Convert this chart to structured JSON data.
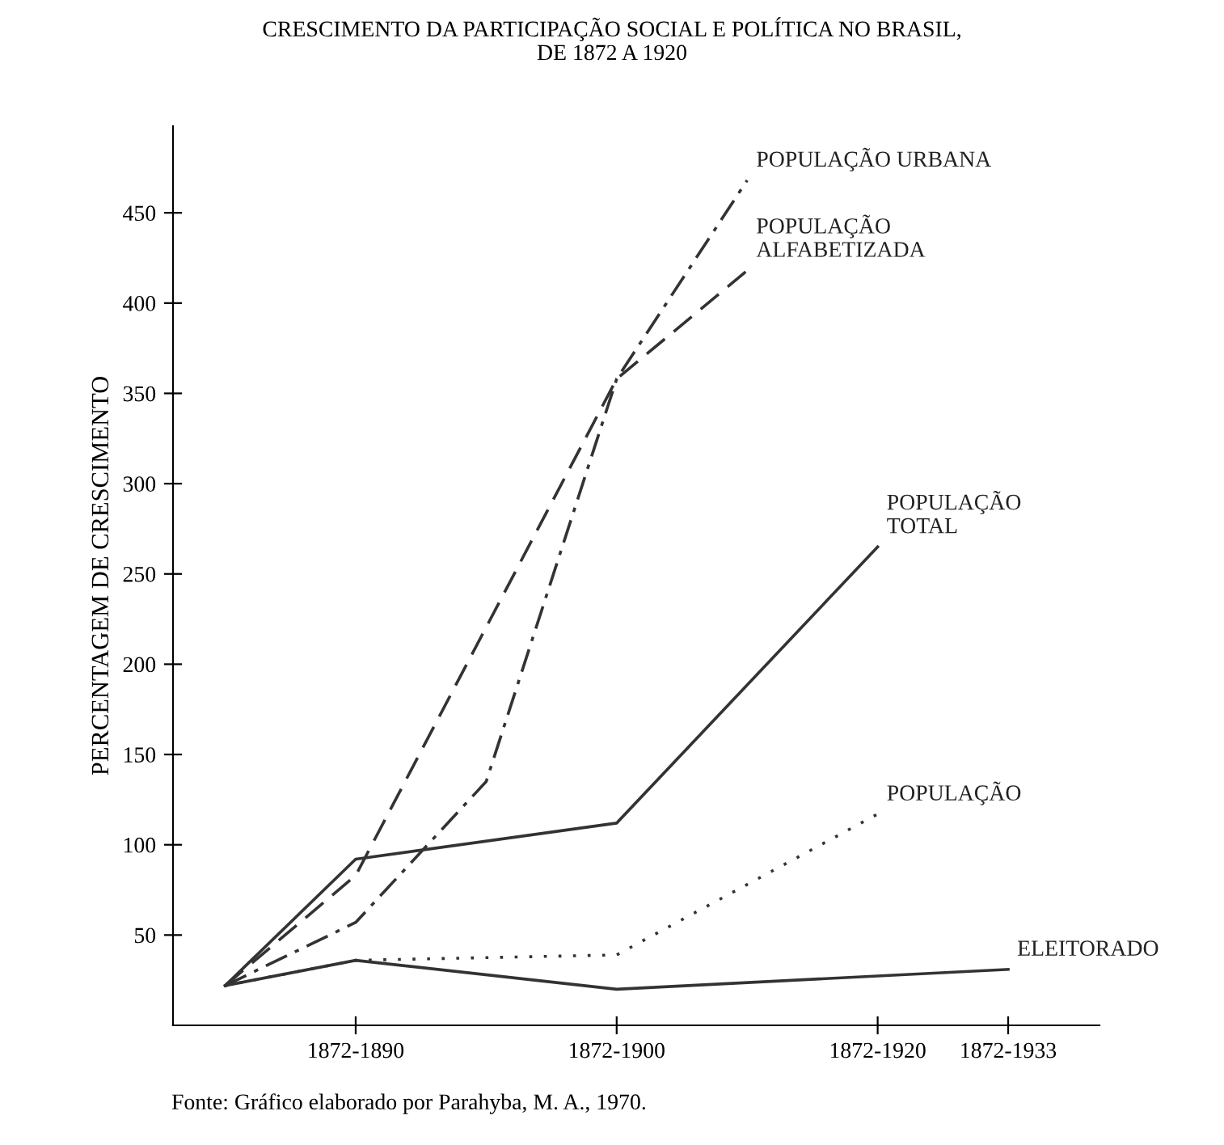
{
  "chart_data": {
    "type": "line",
    "title": "CRESCIMENTO DA PARTICIPAÇÃO SOCIAL E POLÍTICA NO BRASIL,\nDE 1872 A 1920",
    "ylabel": "PERCENTAGEM DE CRESCIMENTO",
    "categories": [
      null,
      "1872-1890",
      null,
      "1872-1900",
      null,
      "1872-1920",
      "1872-1933"
    ],
    "ylim": [
      0,
      498
    ],
    "yticks": [
      50,
      100,
      150,
      200,
      250,
      300,
      350,
      400,
      450
    ],
    "grid": false,
    "legend": false,
    "series": [
      {
        "name": "POPULAÇÃO URBANA",
        "color": "#333333",
        "line_style": "dashdot",
        "values": [
          22,
          57,
          135,
          358,
          468,
          null,
          null
        ]
      },
      {
        "name": "POPULAÇÃO\nALFABETIZADA",
        "color": "#333333",
        "line_style": "dashed",
        "values": [
          22,
          83,
          null,
          358,
          418,
          null,
          null
        ]
      },
      {
        "name": "POPULAÇÃO\nTOTAL",
        "color": "#333333",
        "line_style": "solid",
        "values": [
          22,
          92,
          null,
          112,
          null,
          265,
          null
        ]
      },
      {
        "name": "POPULAÇÃO",
        "color": "#333333",
        "line_style": "dotted",
        "values": [
          22,
          36,
          null,
          39,
          null,
          117,
          null
        ]
      },
      {
        "name": "ELEITORADO",
        "color": "#333333",
        "line_style": "solid",
        "values": [
          22,
          36,
          null,
          20,
          null,
          null,
          31
        ]
      }
    ],
    "annotations": [
      "Fonte: Gráfico elaborado por Parahyba, M. A., 1970."
    ]
  }
}
